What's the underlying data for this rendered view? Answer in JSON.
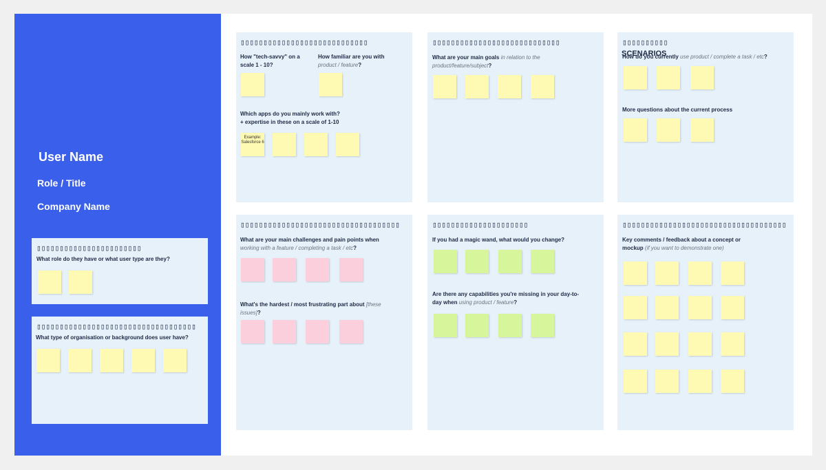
{
  "profile": {
    "user_name": "User Name",
    "role_title": "Role / Title",
    "company_name": "Company Name"
  },
  "frames": {
    "role": {
      "title": "▯▯▯▯▯▯▯▯▯▯▯▯▯▯▯▯▯▯▯▯▯▯▯",
      "q1": "What role do they have or what user type are they?"
    },
    "org": {
      "title": "▯▯▯▯▯▯▯▯▯▯▯▯▯▯▯▯▯▯▯▯▯▯▯▯▯▯▯▯▯▯▯▯▯▯▯",
      "q1": "What type of organisation or background does user have?"
    },
    "tech": {
      "title": "▯▯▯▯▯▯▯▯▯▯▯▯▯▯▯▯▯▯▯▯▯▯▯▯▯▯▯▯",
      "q1": "How \"tech-savvy\" on a scale 1 - 10?",
      "q2_a": "How familiar are you with",
      "q2_b": "product / feature",
      "q2_c": "?",
      "q3_a": "Which apps do you mainly work with?",
      "q3_b": "+ expertise in these on a scale of 1-10",
      "example_note": "Example: Salesforce 6"
    },
    "goals": {
      "title": "▯▯▯▯▯▯▯▯▯▯▯▯▯▯▯▯▯▯▯▯▯▯▯▯▯▯▯▯",
      "q1_a": "What are your main goals",
      "q1_b": "in relation to the product/feature/subject",
      "q1_c": "?"
    },
    "scenarios": {
      "title": "▯▯▯▯▯▯▯▯▯▯",
      "title_overlay": "SCENARIOS",
      "q1_a": "How do you currently",
      "q1_b": "use product / complete a task / etc",
      "q1_c": "?",
      "q2": "More questions about the current process"
    },
    "challenges": {
      "title": "▯▯▯▯▯▯▯▯▯▯▯▯▯▯▯▯▯▯▯▯▯▯▯▯▯▯▯▯▯▯▯▯▯▯▯",
      "q1_a": "What are your main challenges and pain points when",
      "q1_b": "working with a feature / completing a task / etc",
      "q1_c": "?",
      "q2_a": "What's the hardest / most frustrating part about",
      "q2_b": "[these issues]",
      "q2_c": "?"
    },
    "wishes": {
      "title": "▯▯▯▯▯▯▯▯▯▯▯▯▯▯▯▯▯▯▯▯▯",
      "q1": "If you had a magic wand, what would you change?",
      "q2_a": "Are there any capabilities you're missing in your day-to-day when",
      "q2_b": "using product / feature",
      "q2_c": "?"
    },
    "feedback": {
      "title": "▯▯▯▯▯▯▯▯▯▯▯▯▯▯▯▯▯▯▯▯▯▯▯▯▯▯▯▯▯▯▯▯▯▯▯▯",
      "q1_a": "Key comments / feedback about a concept or mockup",
      "q1_b": "(if you want to demonstrate one)"
    }
  },
  "colors": {
    "profile_bg": "#3a5fea",
    "frame_bg": "#e6f1fa",
    "sticky_yellow": "#fef9b3",
    "sticky_pink": "#fbcfdc",
    "sticky_green": "#d7f59b"
  }
}
